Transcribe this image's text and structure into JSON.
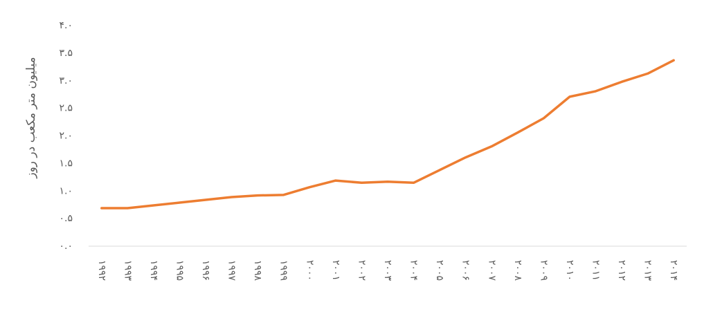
{
  "chart_data": {
    "type": "line",
    "y_label": "میلیون متر مکعب در روز",
    "categories": [
      "۱۹۹۲",
      "۱۹۹۳",
      "۱۹۹۴",
      "۱۹۹۵",
      "۱۹۹۶",
      "۱۹۹۷",
      "۱۹۹۸",
      "۱۹۹۹",
      "۲۰۰۰",
      "۲۰۰۱",
      "۲۰۰۲",
      "۲۰۰۳",
      "۲۰۰۴",
      "۲۰۰۵",
      "۲۰۰۶",
      "۲۰۰۷",
      "۲۰۰۸",
      "۲۰۰۹",
      "۲۰۱۰",
      "۲۰۱۱",
      "۲۰۱۲",
      "۲۰۱۳",
      "۲۰۱۴"
    ],
    "values": [
      0.69,
      0.69,
      0.74,
      0.79,
      0.84,
      0.89,
      0.92,
      0.93,
      1.07,
      1.19,
      1.15,
      1.17,
      1.15,
      1.38,
      1.61,
      1.81,
      2.06,
      2.32,
      2.71,
      2.81,
      2.98,
      3.13,
      3.37
    ],
    "color": "#ED7D31",
    "ylim": [
      0,
      4
    ],
    "yticks": [
      {
        "value": 0,
        "label": "۰.۰"
      },
      {
        "value": 0.5,
        "label": "۰.۵"
      },
      {
        "value": 1,
        "label": "۱.۰"
      },
      {
        "value": 1.5,
        "label": "۱.۵"
      },
      {
        "value": 2,
        "label": "۲.۰"
      },
      {
        "value": 2.5,
        "label": "۲.۵"
      },
      {
        "value": 3,
        "label": "۳.۰"
      },
      {
        "value": 3.5,
        "label": "۳.۵"
      },
      {
        "value": 4,
        "label": "۴.۰"
      }
    ],
    "grid": false
  }
}
